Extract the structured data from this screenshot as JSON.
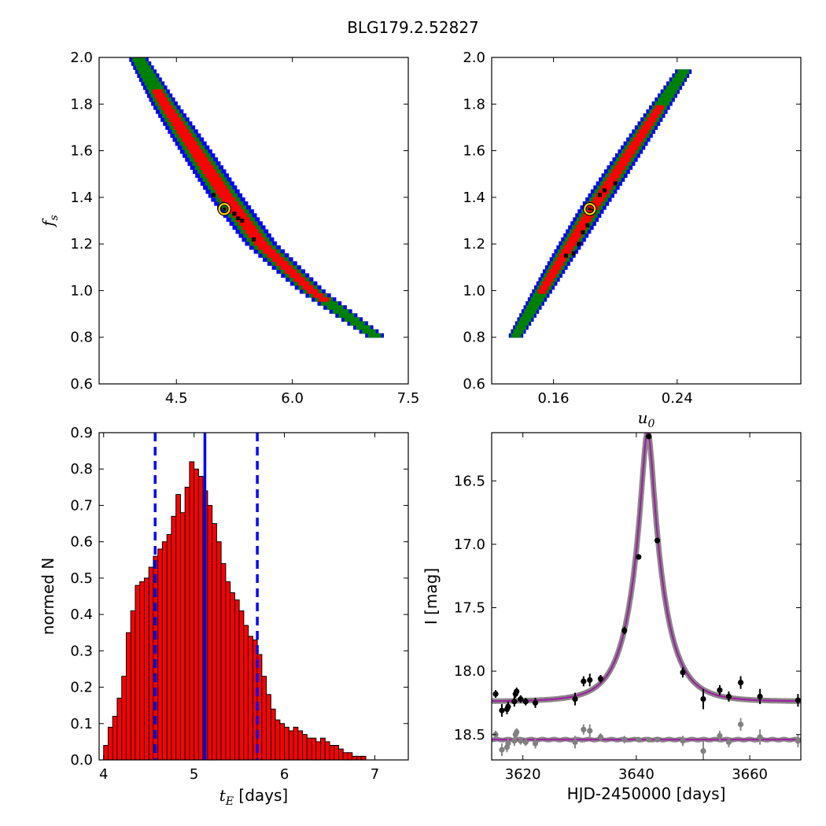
{
  "title": "BLG179.2.52827",
  "chart_data": [
    {
      "id": "fs_vs_tE",
      "type": "heatmap",
      "xlabel": "",
      "ylabel": "f_s",
      "xlim": [
        3.5,
        7.5
      ],
      "ylim": [
        0.6,
        2.0
      ],
      "xticks": [
        "4.5",
        "6.0",
        "7.5"
      ],
      "yticks": [
        "0.6",
        "0.8",
        "1.0",
        "1.2",
        "1.4",
        "1.6",
        "1.8",
        "2.0"
      ],
      "colors": {
        "outer": "#0000ff",
        "middle": "#008000",
        "inner": "#ff0000",
        "best": "#ffd700"
      },
      "ridge": [
        [
          4.0,
          2.0
        ],
        [
          4.35,
          1.8
        ],
        [
          4.75,
          1.6
        ],
        [
          5.15,
          1.4
        ],
        [
          5.6,
          1.2
        ],
        [
          6.25,
          1.0
        ],
        [
          7.1,
          0.8
        ]
      ],
      "best_fit": [
        5.12,
        1.35
      ],
      "samples": [
        [
          4.98,
          1.41
        ],
        [
          5.3,
          1.31
        ],
        [
          5.25,
          1.33
        ],
        [
          5.5,
          1.22
        ],
        [
          5.35,
          1.3
        ]
      ]
    },
    {
      "id": "fs_vs_u0",
      "type": "heatmap",
      "xlabel": "u_0",
      "ylabel": "",
      "xlim": [
        0.12,
        0.32
      ],
      "ylim": [
        0.6,
        2.0
      ],
      "xticks": [
        "0.16",
        "0.24"
      ],
      "yticks": [
        "0.6",
        "0.8",
        "1.0",
        "1.2",
        "1.4",
        "1.6",
        "1.8",
        "2.0"
      ],
      "ridge": [
        [
          0.135,
          0.8
        ],
        [
          0.16,
          1.08
        ],
        [
          0.185,
          1.35
        ],
        [
          0.215,
          1.65
        ],
        [
          0.245,
          1.95
        ]
      ],
      "best_fit": [
        0.1835,
        1.35
      ],
      "samples": [
        [
          0.1765,
          1.2
        ],
        [
          0.179,
          1.25
        ],
        [
          0.182,
          1.28
        ],
        [
          0.186,
          1.34
        ],
        [
          0.19,
          1.41
        ],
        [
          0.193,
          1.43
        ],
        [
          0.2,
          1.46
        ],
        [
          0.173,
          1.16
        ],
        [
          0.168,
          1.15
        ]
      ]
    },
    {
      "id": "tE_histogram",
      "type": "bar",
      "xlabel": "t_E [days]",
      "ylabel": "normed N",
      "xlim": [
        3.95,
        7.37
      ],
      "ylim": [
        0.0,
        0.9
      ],
      "xticks": [
        "4",
        "5",
        "6",
        "7"
      ],
      "yticks": [
        "0.0",
        "0.1",
        "0.2",
        "0.3",
        "0.4",
        "0.5",
        "0.6",
        "0.7",
        "0.8",
        "0.9"
      ],
      "bin_start": 3.95,
      "bin_width": 0.05,
      "values": [
        0.0,
        0.04,
        0.09,
        0.12,
        0.17,
        0.23,
        0.35,
        0.41,
        0.48,
        0.49,
        0.5,
        0.53,
        0.56,
        0.58,
        0.6,
        0.62,
        0.67,
        0.73,
        0.68,
        0.75,
        0.82,
        0.8,
        0.78,
        0.74,
        0.7,
        0.65,
        0.6,
        0.54,
        0.49,
        0.46,
        0.44,
        0.41,
        0.37,
        0.34,
        0.33,
        0.29,
        0.23,
        0.18,
        0.14,
        0.11,
        0.1,
        0.09,
        0.08,
        0.09,
        0.08,
        0.07,
        0.06,
        0.06,
        0.05,
        0.06,
        0.05,
        0.04,
        0.04,
        0.03,
        0.02,
        0.02,
        0.01,
        0.01,
        0.01,
        0.0
      ],
      "bar_color": "#ff0000",
      "median": 5.12,
      "interval": [
        4.57,
        5.7
      ],
      "line_color": "#0000ff"
    },
    {
      "id": "light_curve",
      "type": "scatter",
      "xlabel": "HJD-2450000 [days]",
      "ylabel": "I [mag]",
      "xlim": [
        3614.5,
        3669.0
      ],
      "ylim": [
        18.7,
        16.12
      ],
      "xticks": [
        "3620",
        "3640",
        "3660"
      ],
      "yticks": [
        "16.5",
        "17.0",
        "17.5",
        "18.0",
        "18.5"
      ],
      "model": {
        "t0": 3642.0,
        "tE": 5.12,
        "u0": 0.1835,
        "fs": 1.35,
        "baseline": 18.24,
        "color": "#a020a0"
      },
      "residual_level": 18.54,
      "points": [
        [
          3615.2,
          18.18,
          0.03
        ],
        [
          3616.3,
          18.31,
          0.05
        ],
        [
          3617.2,
          18.3,
          0.04
        ],
        [
          3617.4,
          18.28,
          0.04
        ],
        [
          3618.5,
          18.24,
          0.04
        ],
        [
          3618.7,
          18.18,
          0.03
        ],
        [
          3618.9,
          18.16,
          0.03
        ],
        [
          3619.6,
          18.22,
          0.03
        ],
        [
          3620.5,
          18.24,
          0.03
        ],
        [
          3622.2,
          18.25,
          0.04
        ],
        [
          3629.2,
          18.22,
          0.05
        ],
        [
          3630.7,
          18.08,
          0.04
        ],
        [
          3631.8,
          18.07,
          0.05
        ],
        [
          3633.7,
          18.06,
          0.03
        ],
        [
          3637.9,
          17.68,
          0.03
        ],
        [
          3640.4,
          17.1,
          0.02
        ],
        [
          3642.2,
          16.15,
          0.02
        ],
        [
          3643.7,
          16.97,
          0.02
        ],
        [
          3648.2,
          18.01,
          0.04
        ],
        [
          3651.8,
          18.22,
          0.08
        ],
        [
          3654.7,
          18.15,
          0.04
        ],
        [
          3656.3,
          18.2,
          0.04
        ],
        [
          3658.4,
          18.09,
          0.05
        ],
        [
          3661.8,
          18.2,
          0.06
        ],
        [
          3668.5,
          18.23,
          0.05
        ]
      ],
      "residuals": [
        [
          3615.2,
          18.5,
          0.03
        ],
        [
          3616.3,
          18.62,
          0.05
        ],
        [
          3617.2,
          18.6,
          0.04
        ],
        [
          3617.4,
          18.57,
          0.04
        ],
        [
          3618.5,
          18.55,
          0.04
        ],
        [
          3618.7,
          18.5,
          0.03
        ],
        [
          3618.9,
          18.48,
          0.03
        ],
        [
          3619.6,
          18.55,
          0.03
        ],
        [
          3620.5,
          18.56,
          0.03
        ],
        [
          3622.2,
          18.57,
          0.04
        ],
        [
          3629.2,
          18.56,
          0.05
        ],
        [
          3630.7,
          18.46,
          0.04
        ],
        [
          3631.8,
          18.47,
          0.05
        ],
        [
          3633.7,
          18.52,
          0.03
        ],
        [
          3637.9,
          18.54,
          0.03
        ],
        [
          3640.4,
          18.54,
          0.02
        ],
        [
          3642.2,
          18.54,
          0.02
        ],
        [
          3643.7,
          18.54,
          0.02
        ],
        [
          3648.2,
          18.55,
          0.04
        ],
        [
          3651.8,
          18.63,
          0.08
        ],
        [
          3654.7,
          18.51,
          0.04
        ],
        [
          3656.3,
          18.56,
          0.04
        ],
        [
          3658.4,
          18.42,
          0.05
        ],
        [
          3661.8,
          18.52,
          0.06
        ],
        [
          3668.5,
          18.55,
          0.05
        ]
      ]
    }
  ]
}
